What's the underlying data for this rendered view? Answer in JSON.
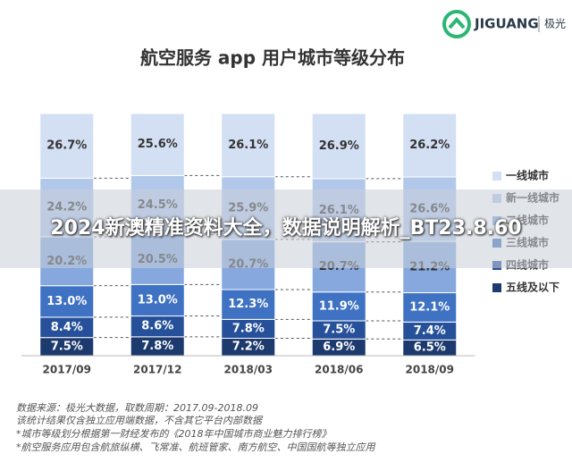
{
  "logo": {
    "text": "JIGUANG",
    "cn": "极光"
  },
  "banner": "2024新澳精准资料大全，数据说明解析_BT23.8.60",
  "notes": [
    "数据来源：极光大数据，取数周期：2017.09-2018.09",
    "该统计结果仅含独立应用端数据，不含其它平台内部数据",
    "*城市等级划分根据第一财经发布的《2018年中国城市商业魅力排行榜》",
    "*航空服务应用包含航旅纵横、飞常准、航班管家、南方航空、中国国航等独立应用"
  ],
  "chart_data": {
    "type": "stacked_bar",
    "title": "航空服务 app 用户城市等级分布",
    "categories": [
      "2017/09",
      "2017/12",
      "2018/03",
      "2018/06",
      "2018/09"
    ],
    "legend": "right",
    "series": [
      {
        "name": "五线及以下",
        "color": "#1d3a6e",
        "values": [
          7.5,
          7.8,
          7.2,
          6.9,
          6.5
        ],
        "value_labels": [
          "7.5%",
          "7.8%",
          "7.2%",
          "6.9%",
          "6.5%"
        ]
      },
      {
        "name": "四线城市",
        "color": "#26519a",
        "values": [
          8.4,
          8.6,
          7.8,
          7.5,
          7.4
        ],
        "value_labels": [
          "8.4%",
          "8.6%",
          "7.8%",
          "7.5%",
          "7.4%"
        ]
      },
      {
        "name": "三线城市",
        "color": "#3f72c2",
        "values": [
          13.0,
          13.0,
          12.3,
          11.9,
          12.1
        ],
        "value_labels": [
          "13.0%",
          "13.0%",
          "12.3%",
          "11.9%",
          "12.1%"
        ]
      },
      {
        "name": "二线城市",
        "color": "#86a8de",
        "values": [
          20.2,
          20.5,
          20.7,
          20.7,
          21.2
        ],
        "value_labels": [
          "20.2%",
          "20.5%",
          "20.7%",
          "20.7%",
          "21.2%"
        ]
      },
      {
        "name": "新一线城市",
        "color": "#b2c8ea",
        "values": [
          24.2,
          24.5,
          25.9,
          26.1,
          26.6
        ],
        "value_labels": [
          "24.2%",
          "24.5%",
          "25.9%",
          "26.1%",
          "26.6%"
        ]
      },
      {
        "name": "一线城市",
        "color": "#d3dff3",
        "values": [
          26.7,
          25.6,
          26.1,
          26.9,
          26.2
        ],
        "value_labels": [
          "26.7%",
          "25.6%",
          "26.1%",
          "26.9%",
          "26.2%"
        ]
      }
    ]
  }
}
